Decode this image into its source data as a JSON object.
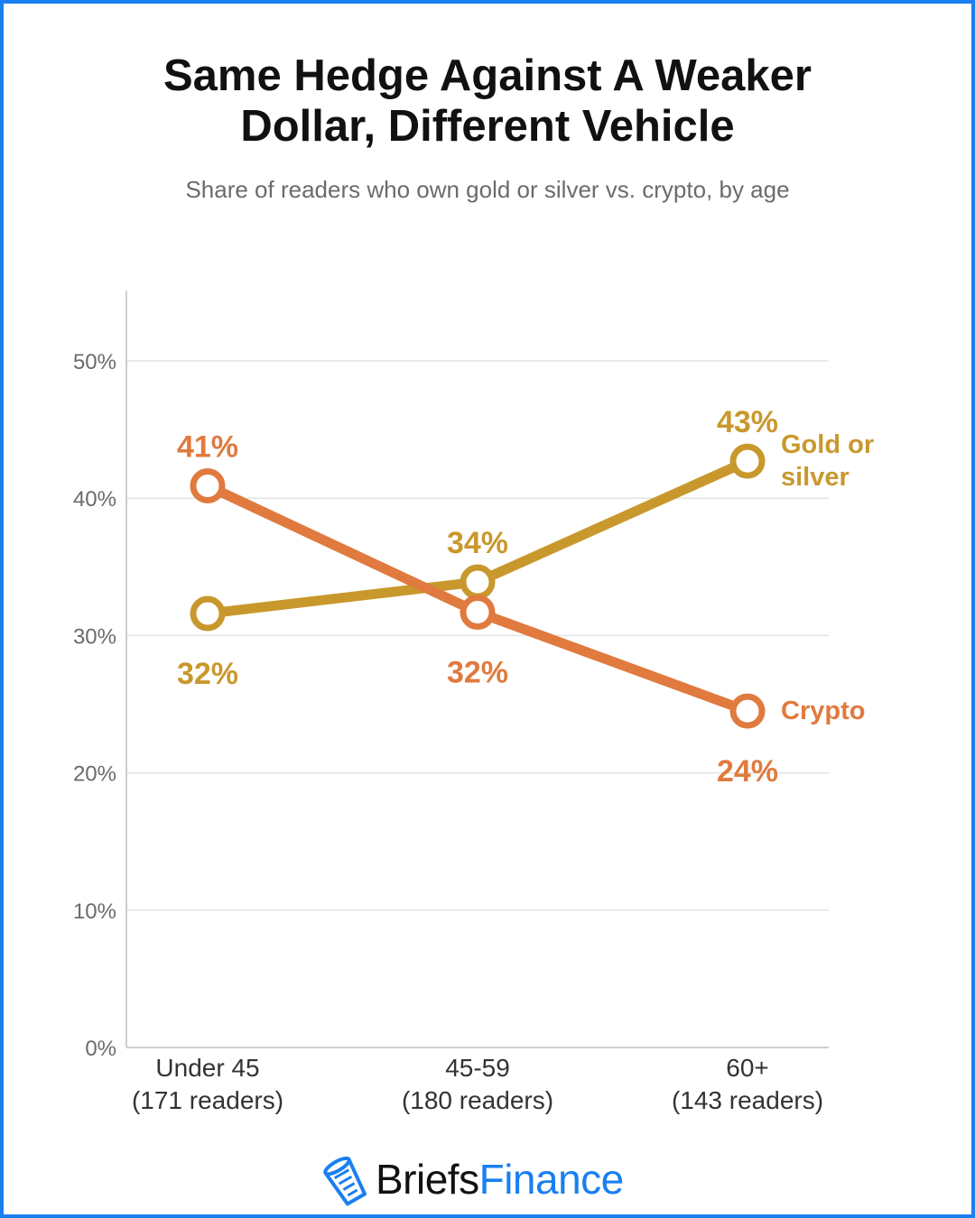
{
  "chart_data": {
    "type": "line",
    "title_lines": [
      "Same Hedge Against A Weaker",
      "Dollar, Different Vehicle"
    ],
    "subtitle": "Share of readers who own gold or silver vs. crypto, by age",
    "categories": [
      [
        "Under 45",
        "(171 readers)"
      ],
      [
        "45-59",
        "(180 readers)"
      ],
      [
        "60+",
        "(143 readers)"
      ]
    ],
    "yticks": [
      "0%",
      "10%",
      "20%",
      "30%",
      "40%",
      "50%"
    ],
    "ylim": [
      0,
      55
    ],
    "grid": true,
    "series": [
      {
        "name_lines": [
          "Gold or",
          "silver"
        ],
        "color": "#c9982d",
        "values": [
          31.6,
          33.9,
          42.7
        ],
        "labels": [
          "32%",
          "34%",
          "43%"
        ],
        "label_side": [
          "below",
          "above",
          "above"
        ]
      },
      {
        "name_lines": [
          "Crypto"
        ],
        "color": "#e07a3f",
        "values": [
          40.9,
          31.7,
          24.5
        ],
        "labels": [
          "41%",
          "32%",
          "24%"
        ],
        "label_side": [
          "above",
          "below",
          "below"
        ]
      }
    ]
  },
  "brand": {
    "name_part1": "Briefs",
    "name_part2": "Finance",
    "logo_icon": "cup-icon",
    "accent_color": "#1a7ff0"
  }
}
